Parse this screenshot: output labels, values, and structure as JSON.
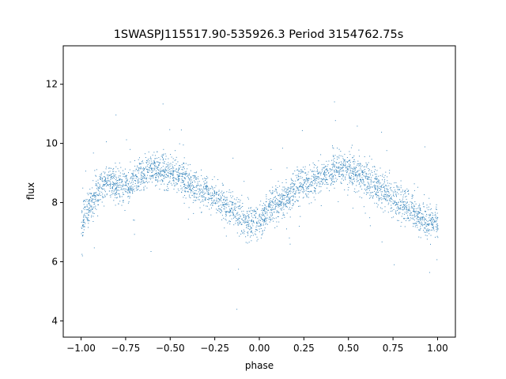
{
  "chart_data": {
    "type": "scatter",
    "title": "1SWASPJ115517.90-535926.3 Period 3154762.75s",
    "xlabel": "phase",
    "ylabel": "flux",
    "xlim": [
      -1.1,
      1.1
    ],
    "ylim": [
      3.45,
      13.3
    ],
    "xticks": [
      -1.0,
      -0.75,
      -0.5,
      -0.25,
      0.0,
      0.25,
      0.5,
      0.75,
      1.0
    ],
    "xtick_labels": [
      "−1.00",
      "−0.75",
      "−0.50",
      "−0.25",
      "0.00",
      "0.25",
      "0.50",
      "0.75",
      "1.00"
    ],
    "yticks": [
      4,
      6,
      8,
      10,
      12
    ],
    "ytick_labels": [
      "4",
      "6",
      "8",
      "10",
      "12"
    ],
    "grid": false,
    "marker_color": "#1f77b4",
    "series": [
      {
        "phase_min": -1.0,
        "phase_max": 1.0,
        "trend": {
          "x": [
            -1.0,
            -0.95,
            -0.9,
            -0.85,
            -0.8,
            -0.75,
            -0.7,
            -0.65,
            -0.6,
            -0.55,
            -0.5,
            -0.45,
            -0.4,
            -0.35,
            -0.3,
            -0.25,
            -0.2,
            -0.15,
            -0.1,
            -0.05,
            0.0,
            0.05,
            0.1,
            0.15,
            0.2,
            0.25,
            0.3,
            0.35,
            0.4,
            0.45,
            0.5,
            0.55,
            0.6,
            0.65,
            0.7,
            0.75,
            0.8,
            0.85,
            0.9,
            0.95,
            1.0
          ],
          "y": [
            7.3,
            8.0,
            8.5,
            8.7,
            8.6,
            8.5,
            8.8,
            9.0,
            9.2,
            9.1,
            9.0,
            8.9,
            8.7,
            8.5,
            8.4,
            8.2,
            8.0,
            7.7,
            7.5,
            7.3,
            7.4,
            7.8,
            8.0,
            8.2,
            8.5,
            8.6,
            8.7,
            8.9,
            9.1,
            9.2,
            9.1,
            9.0,
            8.8,
            8.6,
            8.4,
            8.2,
            8.0,
            7.8,
            7.5,
            7.3,
            7.4
          ]
        },
        "scatter_sd": 0.75
      }
    ]
  }
}
